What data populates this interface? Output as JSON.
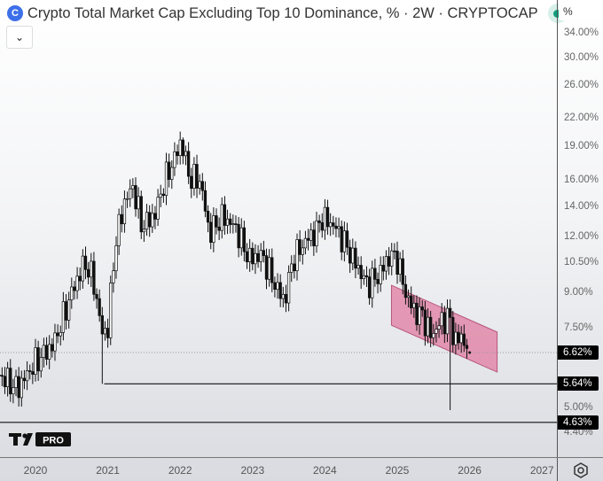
{
  "header": {
    "title": "Crypto Total Market Cap Excluding Top 10 Dominance, % · 2W · CRYPTOCAP",
    "unit_button": "%"
  },
  "branding": {
    "logo_text": "TV PRO"
  },
  "chart_data": {
    "type": "candlestick",
    "title": "Crypto Total Market Cap Excluding Top 10 Dominance, %",
    "interval": "2W",
    "exchange": "CRYPTOCAP",
    "y_scale": "log",
    "ylim": [
      4.3,
      36
    ],
    "y_ticks": [
      "34.00%",
      "30.00%",
      "26.00%",
      "22.00%",
      "19.00%",
      "16.00%",
      "14.00%",
      "12.00%",
      "10.50%",
      "9.00%",
      "7.50%",
      "5.00%",
      "4.40%"
    ],
    "y_tick_values": [
      34,
      30,
      26,
      22,
      19,
      16,
      14,
      12,
      10.5,
      9,
      7.5,
      5,
      4.4
    ],
    "x_ticks": [
      "2020",
      "2021",
      "2022",
      "2023",
      "2024",
      "2025",
      "2026",
      "2027"
    ],
    "x_tick_values": [
      2020,
      2021,
      2022,
      2023,
      2024,
      2025,
      2026,
      2027
    ],
    "closes": [
      {
        "t": 2019.5,
        "v": 5.9
      },
      {
        "t": 2019.75,
        "v": 5.5
      },
      {
        "t": 2020.0,
        "v": 6.3
      },
      {
        "t": 2020.25,
        "v": 6.9
      },
      {
        "t": 2020.5,
        "v": 9.0
      },
      {
        "t": 2020.68,
        "v": 10.5
      },
      {
        "t": 2020.8,
        "v": 9.6
      },
      {
        "t": 2020.92,
        "v": 7.3
      },
      {
        "t": 2021.0,
        "v": 7.5
      },
      {
        "t": 2021.1,
        "v": 11.5
      },
      {
        "t": 2021.23,
        "v": 14.3
      },
      {
        "t": 2021.35,
        "v": 15.5
      },
      {
        "t": 2021.47,
        "v": 12.6
      },
      {
        "t": 2021.65,
        "v": 13.4
      },
      {
        "t": 2021.78,
        "v": 15.9
      },
      {
        "t": 2021.9,
        "v": 17.5
      },
      {
        "t": 2022.02,
        "v": 19.6
      },
      {
        "t": 2022.12,
        "v": 16.3
      },
      {
        "t": 2022.28,
        "v": 15.9
      },
      {
        "t": 2022.4,
        "v": 12.2
      },
      {
        "t": 2022.59,
        "v": 13.3
      },
      {
        "t": 2022.77,
        "v": 12.5
      },
      {
        "t": 2022.95,
        "v": 10.7
      },
      {
        "t": 2023.13,
        "v": 10.9
      },
      {
        "t": 2023.32,
        "v": 9.3
      },
      {
        "t": 2023.44,
        "v": 8.6
      },
      {
        "t": 2023.56,
        "v": 10.7
      },
      {
        "t": 2023.75,
        "v": 11.8
      },
      {
        "t": 2023.88,
        "v": 12.3
      },
      {
        "t": 2023.96,
        "v": 13.2
      },
      {
        "t": 2024.12,
        "v": 12.7
      },
      {
        "t": 2024.25,
        "v": 11.8
      },
      {
        "t": 2024.43,
        "v": 10.4
      },
      {
        "t": 2024.58,
        "v": 9.4
      },
      {
        "t": 2024.74,
        "v": 9.8
      },
      {
        "t": 2024.9,
        "v": 10.9
      },
      {
        "t": 2025.0,
        "v": 10.7
      },
      {
        "t": 2025.11,
        "v": 9.0
      },
      {
        "t": 2025.23,
        "v": 8.2
      },
      {
        "t": 2025.35,
        "v": 8.0
      },
      {
        "t": 2025.47,
        "v": 7.2
      },
      {
        "t": 2025.59,
        "v": 7.7
      },
      {
        "t": 2025.71,
        "v": 8.0
      },
      {
        "t": 2025.8,
        "v": 7.0
      },
      {
        "t": 2025.9,
        "v": 7.2
      },
      {
        "t": 2025.98,
        "v": 6.62
      }
    ],
    "notable_wicks": [
      {
        "t": 2020.92,
        "low": 5.64
      },
      {
        "t": 2025.74,
        "low": 4.93
      },
      {
        "t": 2022.02,
        "high": 19.9
      }
    ],
    "price_labels": [
      {
        "label": "6.62%",
        "value": 6.62,
        "style": "dotted-last-price"
      },
      {
        "label": "5.64%",
        "value": 5.64,
        "style": "horizontal-line",
        "from": 2020.95
      },
      {
        "label": "4.63%",
        "value": 4.63,
        "style": "horizontal-line",
        "from": 2019.5
      }
    ],
    "channel": {
      "color": "#e07ba0",
      "top": [
        [
          2024.92,
          9.34
        ],
        [
          2026.38,
          7.35
        ]
      ],
      "bottom": [
        [
          2024.92,
          7.61
        ],
        [
          2026.38,
          5.99
        ]
      ]
    }
  }
}
